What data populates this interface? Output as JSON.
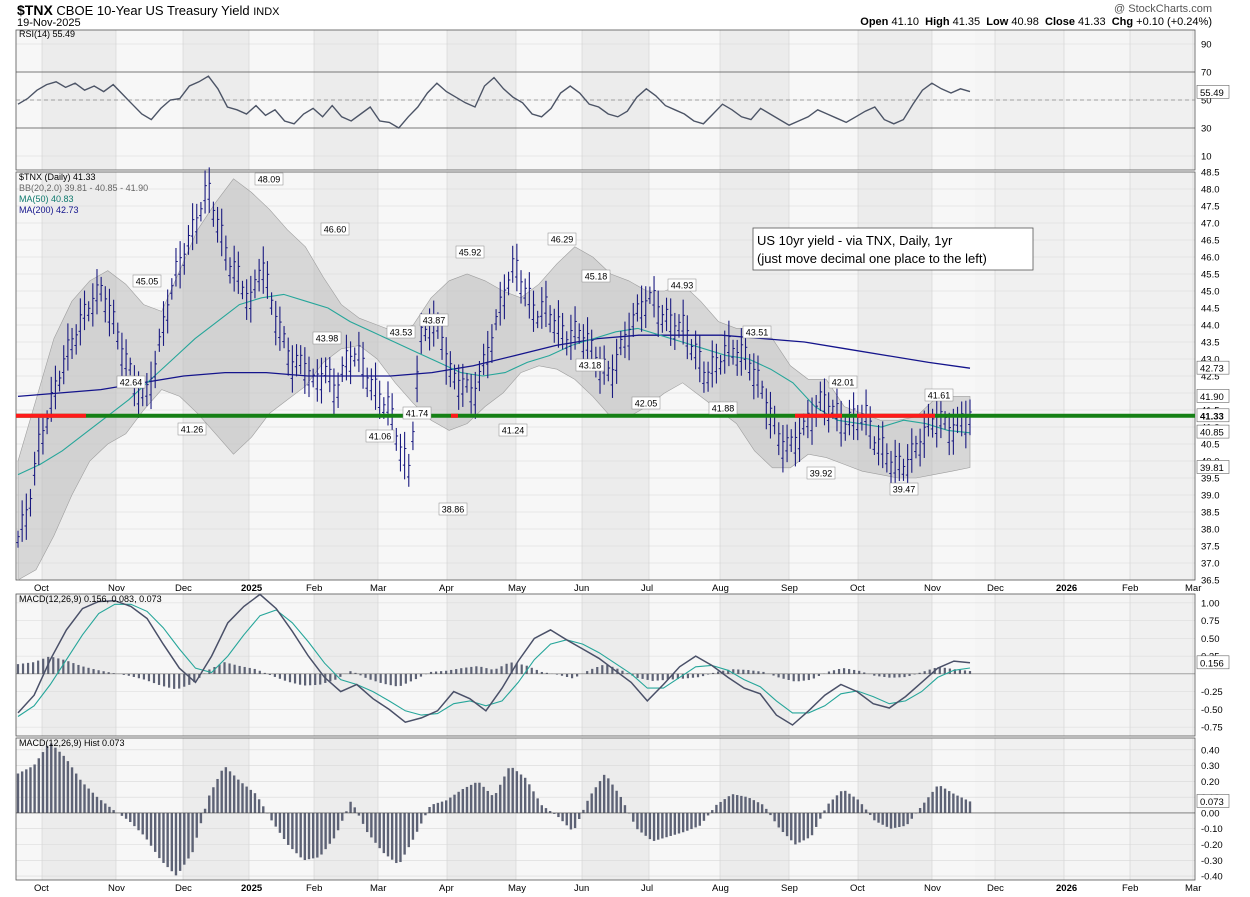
{
  "header": {
    "symbol": "$TNX",
    "name": "CBOE 10-Year US Treasury Yield",
    "exchange": "INDX",
    "date": "19-Nov-2025",
    "brand": "@ StockCharts.com",
    "ohlc": {
      "open_label": "Open",
      "open": "41.10",
      "high_label": "High",
      "high": "41.35",
      "low_label": "Low",
      "low": "40.98",
      "close_label": "Close",
      "close": "41.33",
      "chg_label": "Chg",
      "chg": "+0.10 (+0.24%)"
    }
  },
  "colors": {
    "price_bar": "#1a1a80",
    "ma50": "#26a69a",
    "ma200": "#14148c",
    "bb_fill": "#bdbdbd",
    "support_red": "#ff1a1a",
    "support_green": "#158015",
    "macd_line": "#4a5068",
    "signal_line": "#26a69a",
    "hist": "#5d6275"
  },
  "time_axis": [
    "Oct",
    "Nov",
    "Dec",
    "2025",
    "Feb",
    "Mar",
    "Apr",
    "May",
    "Jun",
    "Jul",
    "Aug",
    "Sep",
    "Oct",
    "Nov",
    "Dec",
    "2026",
    "Feb",
    "Mar"
  ],
  "chart_data": [
    {
      "type": "line",
      "legend": "RSI(14) 55.49",
      "ylim": [
        0,
        100
      ],
      "yticks": [
        90,
        70,
        50,
        30,
        10
      ],
      "reference_lines": [
        70,
        50,
        30
      ],
      "last_value": "55.49",
      "series": [
        {
          "values": [
            47,
            51,
            57,
            61,
            63,
            59,
            62,
            57,
            60,
            56,
            61,
            54,
            47,
            40,
            36,
            44,
            50,
            51,
            60,
            63,
            67,
            58,
            45,
            43,
            40,
            46,
            39,
            43,
            35,
            33,
            40,
            44,
            38,
            46,
            38,
            35,
            40,
            45,
            35,
            34,
            30,
            38,
            45,
            55,
            62,
            56,
            52,
            48,
            45,
            60,
            66,
            58,
            52,
            48,
            40,
            38,
            44,
            55,
            60,
            55,
            47,
            45,
            40,
            38,
            42,
            52,
            58,
            53,
            46,
            43,
            40,
            35,
            33,
            40,
            47,
            43,
            38,
            36,
            44,
            40,
            36,
            32,
            35,
            38,
            43,
            40,
            37,
            34,
            38,
            42,
            45,
            36,
            33,
            36,
            47,
            57,
            62,
            58,
            55,
            58,
            56
          ]
        }
      ]
    },
    {
      "type": "line",
      "legend": [
        "$TNX (Daily) 41.33",
        "BB(20,2.0) 39.81 - 40.85 - 41.90",
        "MA(50) 40.83",
        "MA(200) 42.73"
      ],
      "ylim": [
        36.5,
        48.5
      ],
      "yticks": [
        48.5,
        48.0,
        47.5,
        47.0,
        46.5,
        46.0,
        45.5,
        45.0,
        44.5,
        44.0,
        43.5,
        43.0,
        42.5,
        42.0,
        41.5,
        41.0,
        40.5,
        40.0,
        39.5,
        39.0,
        38.5,
        38.0,
        37.5,
        37.0,
        36.5
      ],
      "series": [
        {
          "name": "$TNX",
          "values": [
            37.7,
            38.6,
            40.5,
            41.5,
            42.6,
            43.4,
            44.1,
            44.7,
            45.0,
            44.1,
            43.1,
            42.3,
            41.8,
            42.8,
            44.4,
            45.6,
            46.3,
            47.2,
            48.0,
            46.8,
            45.8,
            45.3,
            44.6,
            45.9,
            44.6,
            43.6,
            42.8,
            42.9,
            42.2,
            42.7,
            42.0,
            42.9,
            43.2,
            42.5,
            41.9,
            41.6,
            40.5,
            39.6,
            43.5,
            44.1,
            43.7,
            42.4,
            42.3,
            41.9,
            42.8,
            43.8,
            45.0,
            45.8,
            44.9,
            44.3,
            44.5,
            43.9,
            43.6,
            43.8,
            43.4,
            42.8,
            42.5,
            43.3,
            44.0,
            44.6,
            44.8,
            44.2,
            44.0,
            43.9,
            43.2,
            42.5,
            42.8,
            43.3,
            43.2,
            43.0,
            42.3,
            41.5,
            40.6,
            40.4,
            40.8,
            41.3,
            41.8,
            41.5,
            41.1,
            41.2,
            41.4,
            40.6,
            40.2,
            39.8,
            39.9,
            40.4,
            41.0,
            41.3,
            40.9,
            41.1,
            41.33
          ]
        },
        {
          "name": "MA(50)",
          "values": [
            39.6,
            39.9,
            40.3,
            40.8,
            41.3,
            41.8,
            42.4,
            43.0,
            43.6,
            44.1,
            44.6,
            44.8,
            44.9,
            44.7,
            44.5,
            44.1,
            43.8,
            43.5,
            43.2,
            42.9,
            42.6,
            42.5,
            42.6,
            42.9,
            43.1,
            43.4,
            43.6,
            43.8,
            43.9,
            43.7,
            43.5,
            43.3,
            43.1,
            43.0,
            42.7,
            42.3,
            41.6,
            41.2,
            41.1,
            41.0,
            41.2,
            41.1,
            40.9,
            40.83
          ]
        },
        {
          "name": "MA(200)",
          "values": [
            41.9,
            42.0,
            42.1,
            42.3,
            42.5,
            42.6,
            42.6,
            42.5,
            42.5,
            42.5,
            42.6,
            42.8,
            43.1,
            43.4,
            43.6,
            43.7,
            43.7,
            43.7,
            43.6,
            43.5,
            43.3,
            43.1,
            42.9,
            42.73
          ]
        },
        {
          "name": "BB upper",
          "values": [
            40.0,
            41.8,
            43.6,
            44.7,
            45.3,
            45.6,
            45.2,
            44.6,
            44.4,
            45.6,
            46.8,
            47.6,
            48.3,
            47.9,
            47.4,
            46.8,
            46.3,
            45.4,
            44.6,
            44.2,
            44.0,
            43.8,
            44.0,
            44.8,
            45.3,
            45.5,
            45.3,
            45.0,
            44.8,
            45.2,
            45.8,
            46.3,
            46.0,
            45.5,
            45.3,
            45.0,
            45.0,
            45.2,
            44.7,
            44.1,
            43.9,
            43.9,
            43.6,
            42.8,
            42.4,
            42.4,
            41.6,
            41.4,
            41.2,
            41.2,
            41.3,
            41.8,
            41.9,
            41.9
          ]
        },
        {
          "name": "BB lower",
          "values": [
            36.5,
            36.8,
            37.8,
            39.0,
            40.0,
            40.5,
            40.8,
            41.5,
            42.1,
            41.9,
            41.4,
            40.8,
            40.2,
            40.7,
            41.4,
            41.8,
            42.2,
            42.9,
            43.3,
            43.4,
            43.0,
            42.3,
            41.7,
            41.2,
            40.9,
            41.1,
            41.6,
            42.0,
            42.6,
            42.8,
            42.7,
            42.4,
            41.9,
            41.3,
            41.3,
            41.6,
            42.0,
            42.3,
            41.9,
            41.5,
            41.1,
            40.3,
            39.8,
            39.8,
            40.2,
            40.1,
            39.9,
            39.7,
            39.6,
            39.5,
            39.5,
            39.6,
            39.7,
            39.81
          ]
        }
      ],
      "support_line": 41.33,
      "annotations": [
        "41.26",
        "42.64",
        "45.05",
        "48.09",
        "46.60",
        "43.98",
        "41.06",
        "43.53",
        "41.74",
        "43.87",
        "38.86",
        "45.92",
        "41.24",
        "46.29",
        "45.18",
        "43.18",
        "42.05",
        "44.93",
        "41.88",
        "43.51",
        "39.92",
        "42.01",
        "39.47",
        "41.61"
      ],
      "note": [
        "US 10yr yield - via TNX, Daily, 1yr",
        "(just move decimal one place to the left)"
      ],
      "right_labels": [
        "42.73",
        "41.90",
        "41.33",
        "40.85",
        "39.81"
      ]
    },
    {
      "type": "line",
      "legend": "MACD(12,26,9) 0.156, 0.083, 0.073",
      "ylim": [
        -0.875,
        1.125
      ],
      "yticks": [
        1.0,
        0.75,
        0.5,
        0.25,
        -0.25,
        -0.5,
        -0.75
      ],
      "last_value": "0.156",
      "series": [
        {
          "name": "MACD",
          "values": [
            -0.55,
            -0.3,
            0.2,
            0.62,
            0.92,
            1.02,
            1.03,
            0.95,
            0.78,
            0.42,
            0.08,
            -0.12,
            0.25,
            0.72,
            0.95,
            1.12,
            0.92,
            0.6,
            0.25,
            -0.05,
            -0.25,
            -0.15,
            -0.35,
            -0.5,
            -0.68,
            -0.62,
            -0.52,
            -0.25,
            -0.35,
            -0.52,
            -0.2,
            0.18,
            0.5,
            0.62,
            0.48,
            0.35,
            0.22,
            0.05,
            -0.12,
            -0.38,
            -0.15,
            0.1,
            0.25,
            0.12,
            -0.05,
            -0.2,
            -0.28,
            -0.58,
            -0.72,
            -0.52,
            -0.3,
            -0.15,
            -0.25,
            -0.42,
            -0.48,
            -0.32,
            -0.12,
            0.08,
            0.18,
            0.156
          ]
        },
        {
          "name": "Signal",
          "values": [
            -0.6,
            -0.45,
            -0.15,
            0.2,
            0.55,
            0.85,
            0.98,
            0.98,
            0.88,
            0.65,
            0.35,
            0.08,
            0.02,
            0.25,
            0.55,
            0.82,
            0.9,
            0.72,
            0.45,
            0.15,
            -0.08,
            -0.15,
            -0.25,
            -0.38,
            -0.52,
            -0.58,
            -0.56,
            -0.42,
            -0.38,
            -0.45,
            -0.38,
            -0.12,
            0.2,
            0.42,
            0.48,
            0.42,
            0.3,
            0.15,
            0.0,
            -0.2,
            -0.2,
            -0.05,
            0.1,
            0.12,
            0.05,
            -0.08,
            -0.18,
            -0.38,
            -0.55,
            -0.55,
            -0.45,
            -0.28,
            -0.24,
            -0.32,
            -0.42,
            -0.38,
            -0.25,
            -0.05,
            0.05,
            0.083
          ]
        }
      ]
    },
    {
      "type": "bar",
      "legend": "MACD(12,26,9) Hist 0.073",
      "ylim": [
        -0.425,
        0.475
      ],
      "yticks": [
        0.4,
        0.3,
        0.2,
        0.1,
        0.0,
        -0.1,
        -0.2,
        -0.3,
        -0.4
      ],
      "last_value": "0.073",
      "values": [
        0.25,
        0.3,
        0.45,
        0.35,
        0.2,
        0.1,
        0.02,
        -0.05,
        -0.15,
        -0.3,
        -0.4,
        -0.25,
        0.1,
        0.3,
        0.2,
        0.12,
        -0.05,
        -0.2,
        -0.3,
        -0.28,
        -0.15,
        0.08,
        -0.12,
        -0.25,
        -0.33,
        -0.15,
        0.05,
        0.08,
        0.15,
        0.2,
        0.1,
        0.3,
        0.22,
        0.05,
        -0.02,
        -0.12,
        0.1,
        0.25,
        0.1,
        -0.1,
        -0.18,
        -0.15,
        -0.12,
        -0.08,
        0.05,
        0.12,
        0.1,
        0.05,
        -0.1,
        -0.2,
        -0.15,
        0.05,
        0.15,
        0.08,
        -0.05,
        -0.1,
        -0.08,
        0.05,
        0.18,
        0.12,
        0.073
      ]
    }
  ]
}
